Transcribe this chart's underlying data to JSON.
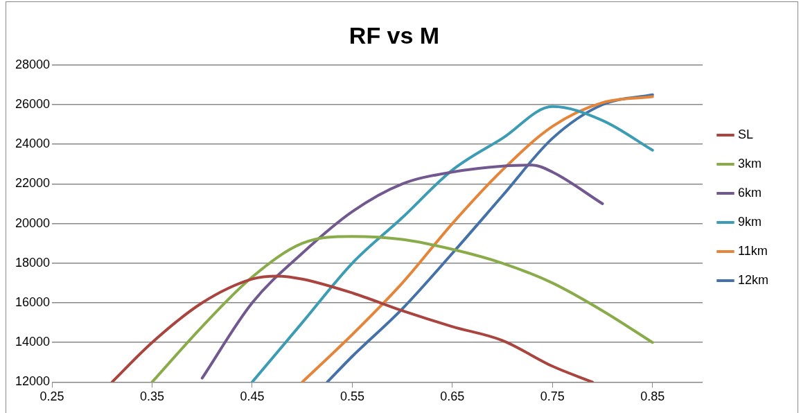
{
  "chart_data": {
    "type": "line",
    "title": "RF vs M",
    "series": [
      {
        "name": "SL",
        "color": "#a9443f",
        "x": [
          0.31,
          0.35,
          0.4,
          0.45,
          0.475,
          0.5,
          0.55,
          0.6,
          0.65,
          0.7,
          0.75,
          0.79
        ],
        "values": [
          12000,
          14000,
          16000,
          17200,
          17350,
          17200,
          16500,
          15600,
          14800,
          14100,
          12800,
          12000
        ]
      },
      {
        "name": "3km",
        "color": "#8aab4a",
        "x": [
          0.35,
          0.4,
          0.45,
          0.5,
          0.55,
          0.6,
          0.65,
          0.7,
          0.75,
          0.8,
          0.85
        ],
        "values": [
          12000,
          14800,
          17300,
          19000,
          19350,
          19200,
          18700,
          18000,
          17000,
          15600,
          14000
        ]
      },
      {
        "name": "6km",
        "color": "#71588f",
        "x": [
          0.4,
          0.45,
          0.5,
          0.55,
          0.6,
          0.65,
          0.7,
          0.73,
          0.75,
          0.8
        ],
        "values": [
          12200,
          16000,
          18500,
          20600,
          22000,
          22600,
          22900,
          22950,
          22600,
          21000
        ]
      },
      {
        "name": "9km",
        "color": "#3c9cb4",
        "x": [
          0.45,
          0.5,
          0.55,
          0.6,
          0.65,
          0.7,
          0.75,
          0.8,
          0.85
        ],
        "values": [
          12000,
          15000,
          18000,
          20300,
          22700,
          24300,
          25900,
          25200,
          23700
        ]
      },
      {
        "name": "11km",
        "color": "#e5853a",
        "x": [
          0.5,
          0.55,
          0.6,
          0.65,
          0.7,
          0.75,
          0.8,
          0.85
        ],
        "values": [
          12000,
          14400,
          17000,
          20000,
          22700,
          24900,
          26100,
          26400
        ]
      },
      {
        "name": "12km",
        "color": "#4472a8",
        "x": [
          0.525,
          0.55,
          0.6,
          0.65,
          0.7,
          0.75,
          0.8,
          0.85
        ],
        "values": [
          12000,
          13300,
          15700,
          18500,
          21400,
          24300,
          26000,
          26500
        ]
      }
    ],
    "xlim": [
      0.25,
      0.9
    ],
    "xticks": [
      0.25,
      0.35,
      0.45,
      0.55,
      0.65,
      0.75,
      0.85
    ],
    "ylim": [
      12000,
      28000
    ],
    "yticks": [
      12000,
      14000,
      16000,
      18000,
      20000,
      22000,
      24000,
      26000,
      28000
    ],
    "grid": "y",
    "legend": "right",
    "marker": "none",
    "line_style": "solid"
  }
}
